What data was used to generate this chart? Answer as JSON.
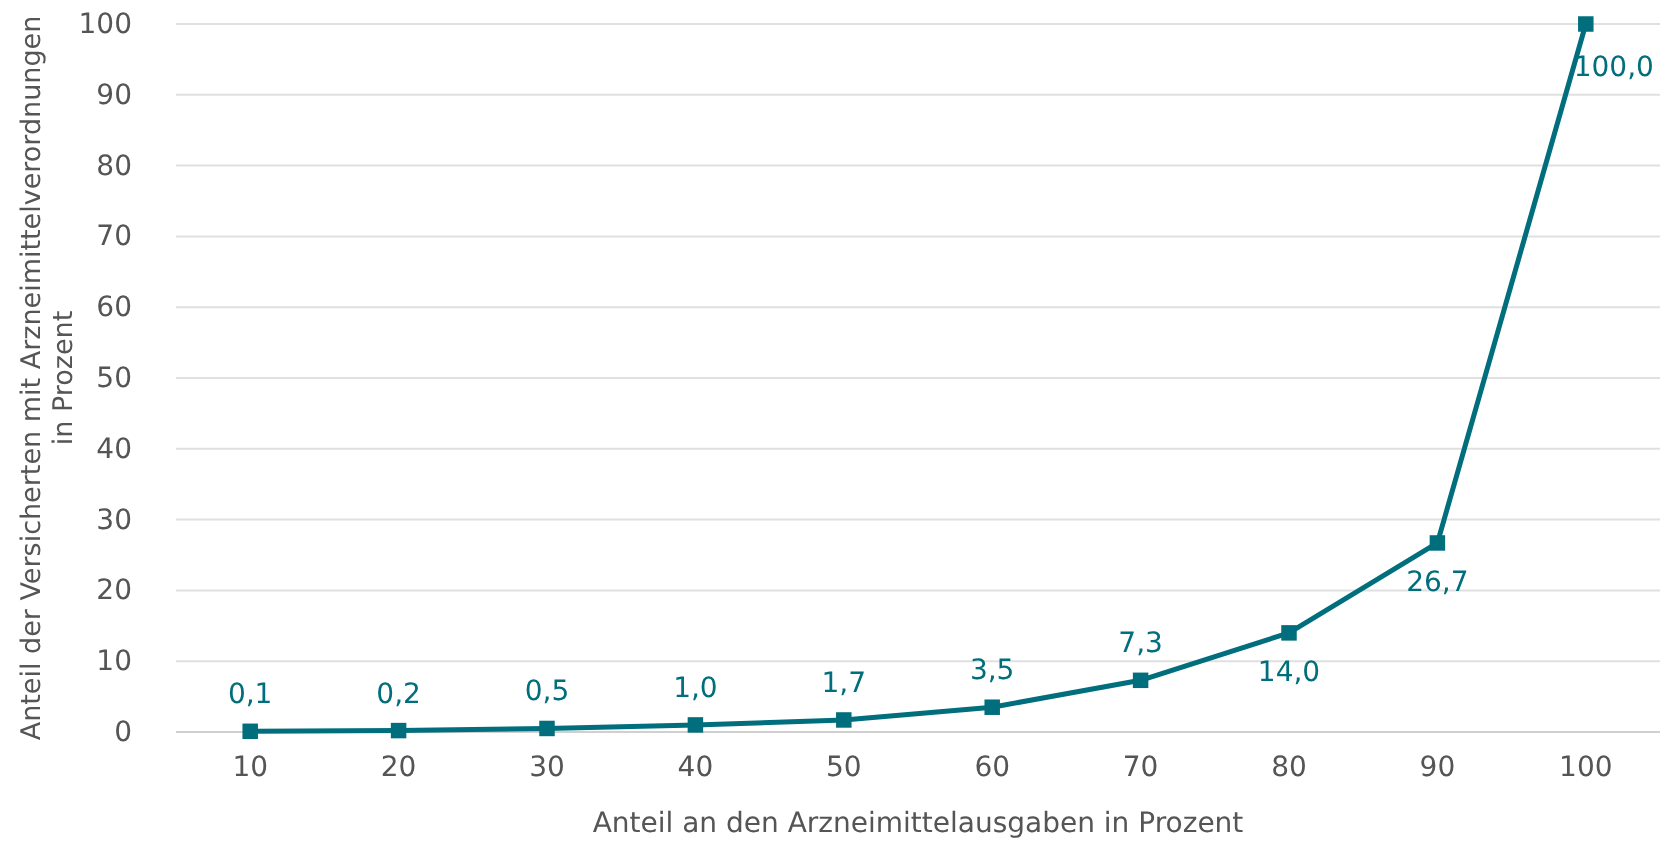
{
  "chart_data": {
    "type": "line",
    "xlabel": "Anteil an den Arzneimittelausgaben in Prozent",
    "ylabel": "Anteil der Versicherten mit Arzneimittelverordnungen\nin Prozent",
    "categories": [
      "10",
      "20",
      "30",
      "40",
      "50",
      "60",
      "70",
      "80",
      "90",
      "100"
    ],
    "series": [
      {
        "color": "#006e7c",
        "values": [
          0.1,
          0.2,
          0.5,
          1.0,
          1.7,
          3.5,
          7.3,
          14.0,
          26.7,
          100.0
        ],
        "value_labels": [
          "0,1",
          "0,2",
          "0,5",
          "1,0",
          "1,7",
          "3,5",
          "7,3",
          "14,0",
          "26,7",
          "100,0"
        ]
      }
    ],
    "ylim": [
      0,
      100
    ],
    "yticks": [
      0,
      10,
      20,
      30,
      40,
      50,
      60,
      70,
      80,
      90,
      100
    ],
    "grid": "y",
    "marker": "square",
    "line_style": "solid"
  }
}
